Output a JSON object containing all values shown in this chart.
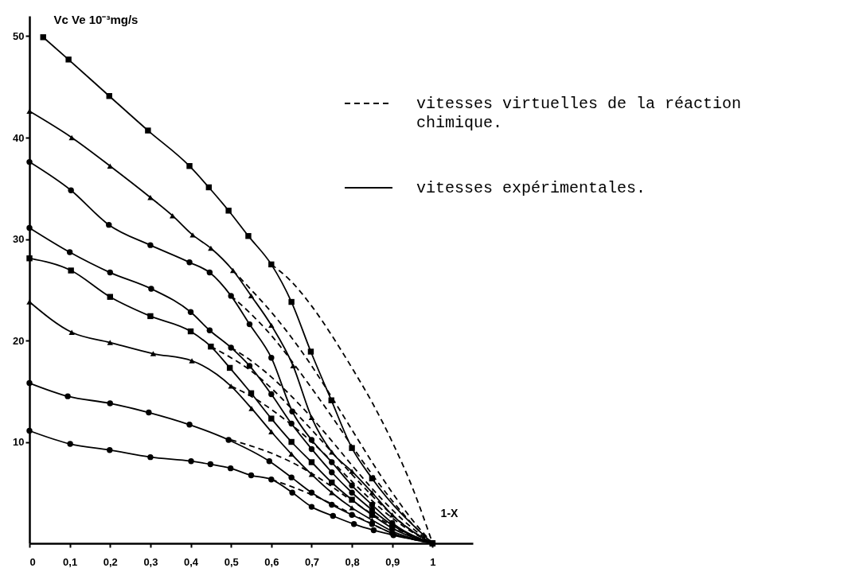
{
  "chart_data": {
    "type": "line",
    "ylabel": "Vc Ve 10⁻³mg/s",
    "xlabel": "1-X",
    "xlim": [
      0,
      1.1
    ],
    "ylim": [
      0,
      52
    ],
    "xticks": [
      0,
      {
        "value": 0.1,
        "label": "0,1"
      },
      {
        "value": 0.2,
        "label": "0,2"
      },
      {
        "value": 0.3,
        "label": "0,3"
      },
      {
        "value": 0.4,
        "label": "0,4"
      },
      {
        "value": 0.5,
        "label": "0,5"
      },
      {
        "value": 0.6,
        "label": "0,6"
      },
      {
        "value": 0.7,
        "label": "0,7"
      },
      {
        "value": 0.8,
        "label": "0,8"
      },
      {
        "value": 0.9,
        "label": "0,9"
      },
      1
    ],
    "yticks": [
      10,
      20,
      30,
      40,
      50
    ],
    "grid": false,
    "legend": "top right",
    "series": [
      {
        "name": "vitesses virtuelles de la réaction chimique.",
        "color": "#000000",
        "line_style": "dashed",
        "marker": "none",
        "x": [
          0.6,
          0.65,
          0.7,
          0.75,
          0.8,
          0.85,
          0.9,
          0.95,
          1
        ],
        "values": [
          27.5,
          25.8,
          23.4,
          20.5,
          17.3,
          13.9,
          10.0,
          5.5,
          0
        ]
      },
      {
        "color": "#000000",
        "line_style": "dashed",
        "marker": "none",
        "x": [
          0.505,
          0.55,
          0.6,
          0.65,
          0.7,
          0.75,
          0.8,
          0.85,
          0.9,
          0.95,
          1
        ],
        "values": [
          26.9,
          25.0,
          22.8,
          20.3,
          17.5,
          14.4,
          11.2,
          8.0,
          5.0,
          2.3,
          0
        ]
      },
      {
        "color": "#000000",
        "line_style": "dashed",
        "marker": "none",
        "x": [
          0.5,
          0.55,
          0.6,
          0.65,
          0.7,
          0.75,
          0.8,
          0.85,
          0.9,
          0.95,
          1
        ],
        "values": [
          24.4,
          22.6,
          20.5,
          18.0,
          15.3,
          12.5,
          9.6,
          6.8,
          4.2,
          1.9,
          0
        ]
      },
      {
        "color": "#000000",
        "line_style": "dashed",
        "marker": "none",
        "x": [
          0.5,
          0.55,
          0.6,
          0.65,
          0.7,
          0.75,
          0.8,
          0.85,
          0.9,
          0.95,
          1
        ],
        "values": [
          19.3,
          18.0,
          16.4,
          14.5,
          12.4,
          10.1,
          7.7,
          5.4,
          3.3,
          1.5,
          0
        ]
      },
      {
        "color": "#000000",
        "line_style": "dashed",
        "marker": "none",
        "x": [
          0.45,
          0.5,
          0.55,
          0.6,
          0.65,
          0.7,
          0.75,
          0.8,
          0.85,
          0.9,
          0.95,
          1
        ],
        "values": [
          19.4,
          18.3,
          17.0,
          15.3,
          13.3,
          11.2,
          9.0,
          6.8,
          4.7,
          2.8,
          1.2,
          0
        ]
      },
      {
        "color": "#000000",
        "line_style": "dashed",
        "marker": "none",
        "x": [
          0.5,
          0.55,
          0.6,
          0.65,
          0.7,
          0.75,
          0.8,
          0.85,
          0.9,
          0.95,
          1
        ],
        "values": [
          15.5,
          14.5,
          13.2,
          11.7,
          10.0,
          8.1,
          6.1,
          4.2,
          2.5,
          1.1,
          0
        ]
      },
      {
        "color": "#000000",
        "line_style": "dashed",
        "marker": "none",
        "x": [
          0.5,
          0.55,
          0.6,
          0.65,
          0.7,
          0.75,
          0.8,
          0.85,
          0.9,
          0.95,
          1
        ],
        "values": [
          10.2,
          9.6,
          8.9,
          8.0,
          6.9,
          5.6,
          4.2,
          2.9,
          1.7,
          0.7,
          0
        ]
      },
      {
        "color": "#000000",
        "line_style": "dashed",
        "marker": "none",
        "x": [
          0.6,
          0.65,
          0.7,
          0.75,
          0.8,
          0.85,
          0.9,
          1
        ],
        "values": [
          6.3,
          5.6,
          4.8,
          3.9,
          2.9,
          1.9,
          1.0,
          0
        ]
      },
      {
        "name": "vitesses expérimentales.",
        "color": "#000000",
        "line_style": "solid",
        "marker": "square",
        "x": [
          0.034,
          0.097,
          0.198,
          0.294,
          0.397,
          0.445,
          0.494,
          0.543,
          0.6,
          0.65,
          0.698,
          0.749,
          0.8,
          0.85,
          1
        ],
        "values": [
          49.9,
          47.7,
          44.1,
          40.7,
          37.2,
          35.1,
          32.8,
          30.3,
          27.5,
          23.8,
          18.9,
          14.1,
          9.4,
          6.4,
          0
        ]
      },
      {
        "color": "#000000",
        "line_style": "solid",
        "marker": "triangle",
        "x": [
          0,
          0.105,
          0.2,
          0.3,
          0.355,
          0.405,
          0.45,
          0.505,
          0.55,
          0.6,
          0.654,
          0.7,
          0.75,
          0.8,
          0.85,
          0.9,
          1
        ],
        "values": [
          42.6,
          40.0,
          37.2,
          34.1,
          32.3,
          30.4,
          29.1,
          26.9,
          24.4,
          21.5,
          17.5,
          12.4,
          9.0,
          7.1,
          5.0,
          2.8,
          0
        ]
      },
      {
        "color": "#000000",
        "line_style": "solid",
        "marker": "circle",
        "x": [
          0,
          0.103,
          0.197,
          0.3,
          0.397,
          0.447,
          0.5,
          0.546,
          0.6,
          0.652,
          0.7,
          0.75,
          0.8,
          0.85,
          0.9,
          1
        ],
        "values": [
          37.6,
          34.8,
          31.4,
          29.4,
          27.7,
          26.7,
          24.4,
          21.6,
          18.3,
          13.0,
          10.2,
          8.0,
          5.7,
          3.8,
          2.0,
          0
        ]
      },
      {
        "color": "#000000",
        "line_style": "solid",
        "marker": "circle",
        "x": [
          0,
          0.1,
          0.2,
          0.302,
          0.4,
          0.447,
          0.5,
          0.546,
          0.6,
          0.65,
          0.7,
          0.75,
          0.8,
          0.85,
          0.9,
          1
        ],
        "values": [
          31.1,
          28.7,
          26.7,
          25.1,
          22.8,
          21.0,
          19.3,
          17.5,
          14.7,
          11.8,
          9.3,
          7.0,
          5.0,
          3.3,
          1.8,
          0
        ]
      },
      {
        "color": "#000000",
        "line_style": "solid",
        "marker": "square",
        "x": [
          0,
          0.103,
          0.2,
          0.3,
          0.4,
          0.45,
          0.497,
          0.55,
          0.6,
          0.65,
          0.7,
          0.75,
          0.8,
          0.85,
          0.9,
          1
        ],
        "values": [
          28.1,
          26.9,
          24.3,
          22.4,
          20.9,
          19.4,
          17.3,
          14.8,
          12.3,
          10.0,
          8.0,
          6.0,
          4.3,
          2.8,
          1.5,
          0
        ]
      },
      {
        "color": "#000000",
        "line_style": "solid",
        "marker": "triangle",
        "x": [
          0,
          0.105,
          0.2,
          0.307,
          0.403,
          0.5,
          0.551,
          0.6,
          0.65,
          0.7,
          0.75,
          0.8,
          0.85,
          0.9,
          1
        ],
        "values": [
          23.8,
          20.8,
          19.8,
          18.7,
          18.0,
          15.5,
          13.3,
          11.0,
          8.8,
          6.8,
          5.0,
          3.5,
          2.3,
          1.2,
          0
        ]
      },
      {
        "color": "#000000",
        "line_style": "solid",
        "marker": "circle",
        "x": [
          0,
          0.095,
          0.2,
          0.296,
          0.397,
          0.494,
          0.595,
          0.65,
          0.7,
          0.75,
          0.8,
          0.85,
          0.9,
          1
        ],
        "values": [
          15.8,
          14.5,
          13.8,
          12.9,
          11.7,
          10.2,
          8.1,
          6.5,
          5.0,
          3.8,
          2.8,
          1.9,
          1.0,
          0
        ]
      },
      {
        "color": "#000000",
        "line_style": "solid",
        "marker": "circle",
        "x": [
          0,
          0.101,
          0.199,
          0.3,
          0.401,
          0.449,
          0.499,
          0.55,
          0.6,
          0.652,
          0.7,
          0.753,
          0.805,
          0.854,
          0.903,
          1
        ],
        "values": [
          11.1,
          9.8,
          9.2,
          8.5,
          8.1,
          7.8,
          7.4,
          6.7,
          6.3,
          5.0,
          3.6,
          2.7,
          1.9,
          1.3,
          0.8,
          0
        ]
      }
    ]
  }
}
